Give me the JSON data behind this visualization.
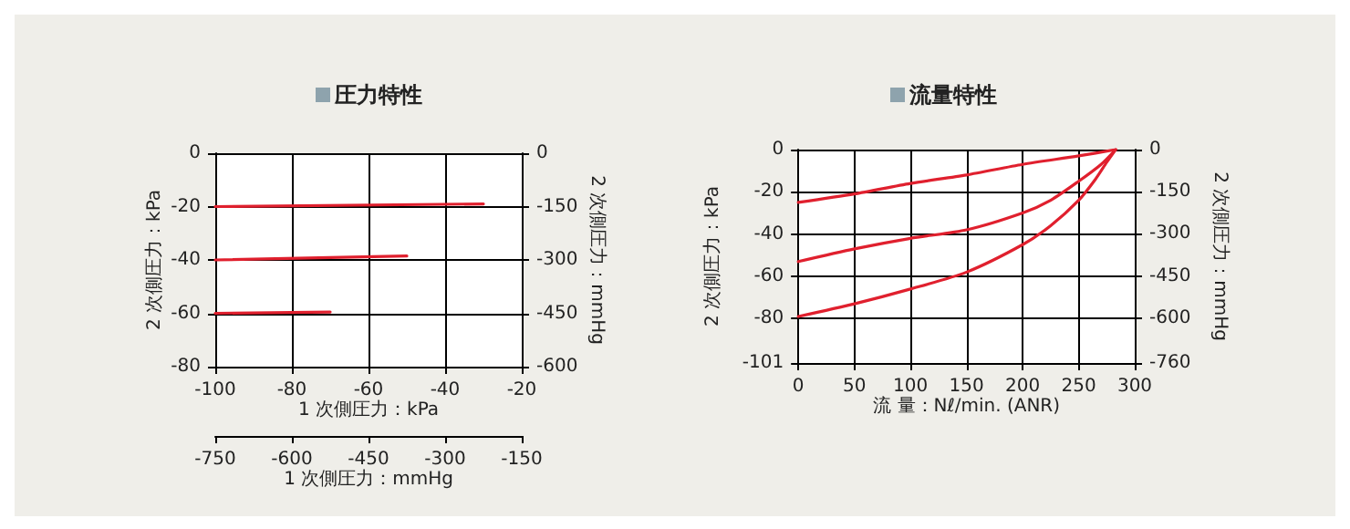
{
  "chart_data": [
    {
      "type": "line",
      "title": "圧力特性",
      "xlabel": "1 次側圧力：kPa",
      "ylabel": "2 次側圧力：kPa",
      "y2label": "2 次側圧力：mmHg",
      "x2label": "1 次側圧力：mmHg",
      "xlim": [
        -100,
        -20
      ],
      "xticks": [
        -100,
        -80,
        -60,
        -40,
        -20
      ],
      "ylim": [
        -80,
        0
      ],
      "yticks": [
        -80,
        -60,
        -40,
        -20,
        0
      ],
      "y2lim": [
        -600,
        0
      ],
      "y2ticks": [
        -600,
        -450,
        -300,
        -150,
        0
      ],
      "x2lim": [
        -750,
        -150
      ],
      "x2ticks": [
        -750,
        -600,
        -450,
        -300,
        -150
      ],
      "grid": true,
      "series": [
        {
          "color": "#e0202e",
          "x": [
            -100,
            -30
          ],
          "values": [
            -20,
            -19
          ]
        },
        {
          "color": "#e0202e",
          "x": [
            -100,
            -50
          ],
          "values": [
            -40,
            -38.5
          ]
        },
        {
          "color": "#e0202e",
          "x": [
            -100,
            -70
          ],
          "values": [
            -60,
            -59.5
          ]
        }
      ]
    },
    {
      "type": "line",
      "title": "流量特性",
      "xlabel": "流 量：Nℓ/min. (ANR)",
      "ylabel": "2 次側圧力：kPa",
      "y2label": "2 次側圧力：mmHg",
      "xlim": [
        0,
        300
      ],
      "xticks": [
        0,
        50,
        100,
        150,
        200,
        250,
        300
      ],
      "ylim": [
        -101,
        0
      ],
      "yticks": [
        -101,
        -80,
        -60,
        -40,
        -20,
        0
      ],
      "y2lim": [
        -760,
        0
      ],
      "y2ticks": [
        -760,
        -600,
        -450,
        -300,
        -150,
        0
      ],
      "grid": true,
      "series": [
        {
          "color": "#e0202e",
          "x": [
            0,
            50,
            100,
            150,
            200,
            250,
            283
          ],
          "values": [
            -25,
            -21,
            -16,
            -12,
            -7,
            -3,
            0
          ]
        },
        {
          "color": "#e0202e",
          "x": [
            0,
            50,
            100,
            150,
            200,
            225,
            250,
            270,
            283
          ],
          "values": [
            -53,
            -47,
            -42,
            -38,
            -30,
            -24,
            -15,
            -7,
            0
          ]
        },
        {
          "color": "#e0202e",
          "x": [
            0,
            50,
            100,
            150,
            200,
            225,
            250,
            265,
            275,
            283
          ],
          "values": [
            -79,
            -73,
            -66,
            -58,
            -45,
            -36,
            -24,
            -14,
            -6,
            0
          ]
        }
      ]
    }
  ]
}
